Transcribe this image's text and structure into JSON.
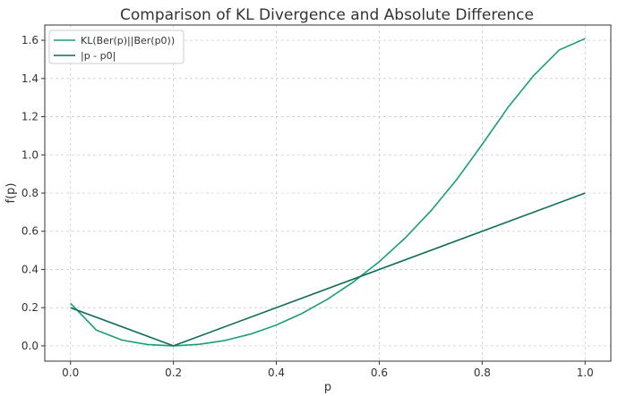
{
  "chart_data": {
    "type": "line",
    "title": "Comparison of KL Divergence and Absolute Difference",
    "xlabel": "p",
    "ylabel": "f(p)",
    "xlim": [
      -0.05,
      1.05
    ],
    "ylim": [
      -0.08,
      1.68
    ],
    "xticks": [
      "0.0",
      "0.2",
      "0.4",
      "0.6",
      "0.8",
      "1.0"
    ],
    "yticks": [
      "0.0",
      "0.2",
      "0.4",
      "0.6",
      "0.8",
      "1.0",
      "1.2",
      "1.4",
      "1.6"
    ],
    "grid": true,
    "legend_position": "top-left",
    "series": [
      {
        "name": "KL(Ber(p)||Ber(p0))",
        "color": "#1a9c7c",
        "x": [
          0.0,
          0.05,
          0.1,
          0.15,
          0.2,
          0.25,
          0.3,
          0.35,
          0.4,
          0.45,
          0.5,
          0.55,
          0.6,
          0.65,
          0.7,
          0.75,
          0.8,
          0.85,
          0.9,
          0.95,
          1.0
        ],
        "y": [
          0.223,
          0.083,
          0.03,
          0.007,
          0.0,
          0.008,
          0.028,
          0.062,
          0.109,
          0.17,
          0.245,
          0.335,
          0.441,
          0.564,
          0.706,
          0.869,
          1.055,
          1.248,
          1.415,
          1.55,
          1.609
        ]
      },
      {
        "name": "|p - p0|",
        "color": "#0e6b56",
        "x": [
          0.0,
          0.2,
          1.0
        ],
        "y": [
          0.2,
          0.0,
          0.8
        ]
      }
    ]
  }
}
